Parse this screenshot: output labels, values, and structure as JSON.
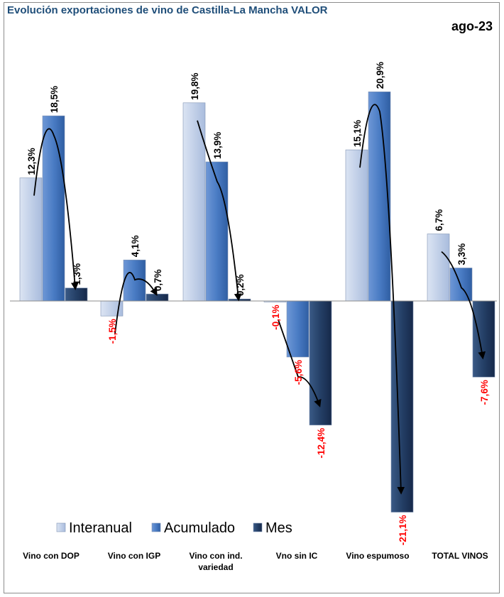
{
  "chart_data": {
    "type": "bar",
    "title": "Evolución exportaciones de vino de Castilla-La Mancha VALOR",
    "period": "ago-23",
    "categories": [
      [
        "Vino con DOP"
      ],
      [
        "Vino con IGP"
      ],
      [
        "Vino con ind.",
        "variedad"
      ],
      [
        "Vno sin IC"
      ],
      [
        "Vino espumoso"
      ],
      [
        "TOTAL VINOS"
      ]
    ],
    "series": [
      {
        "name": "Interanual",
        "values": [
          12.3,
          -1.5,
          19.8,
          -0.1,
          15.1,
          6.7
        ],
        "labels": [
          "12,3%",
          "-1,5%",
          "19,8%",
          "-0,1%",
          "15,1%",
          "6,7%"
        ],
        "color": "#c5d3ea"
      },
      {
        "name": "Acumulado",
        "values": [
          18.5,
          4.1,
          13.9,
          -5.6,
          20.9,
          3.3
        ],
        "labels": [
          "18,5%",
          "4,1%",
          "13,9%",
          "-5,6%",
          "20,9%",
          "3,3%"
        ],
        "color": "#4a7cc4"
      },
      {
        "name": "Mes",
        "values": [
          1.3,
          0.7,
          0.2,
          -12.4,
          -21.1,
          -7.6
        ],
        "labels": [
          "1,3%",
          "0,7%",
          "0,2%",
          "-12,4%",
          "-21,1%",
          "-7,6%"
        ],
        "color": "#1f3a5f"
      }
    ],
    "negative_label_color": "#ff0000",
    "positive_label_color": "#000000",
    "legend_position": "bottom-left",
    "grid": false,
    "trend_arrows": true
  }
}
